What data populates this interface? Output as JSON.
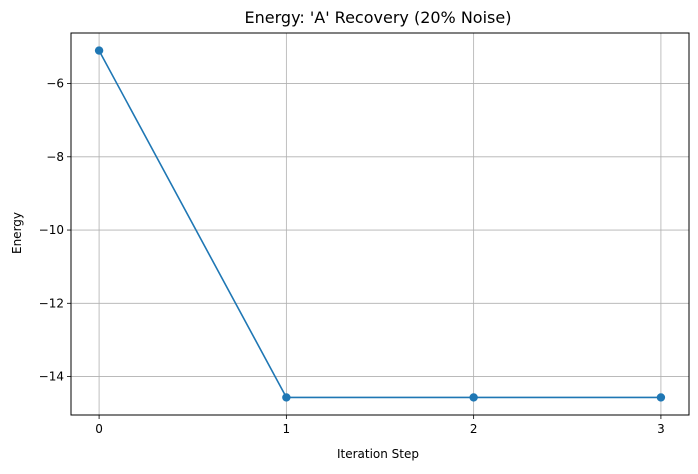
{
  "chart_data": {
    "type": "line",
    "title": "Energy: 'A' Recovery (20% Noise)",
    "xlabel": "Iteration Step",
    "ylabel": "Energy",
    "x": [
      0,
      1,
      2,
      3
    ],
    "series": [
      {
        "values": [
          -5.1,
          -14.57,
          -14.57,
          -14.57
        ],
        "color": "#1f77b4",
        "marker": "circle"
      }
    ],
    "xticks": [
      0,
      1,
      2,
      3
    ],
    "xtick_labels": [
      "0",
      "1",
      "2",
      "3"
    ],
    "yticks": [
      -14,
      -12,
      -10,
      -8,
      -6
    ],
    "ytick_labels": [
      "−14",
      "−12",
      "−10",
      "−8",
      "−6"
    ],
    "xlim": [
      -0.15,
      3.15
    ],
    "ylim": [
      -15.05,
      -4.62
    ],
    "grid": true
  }
}
